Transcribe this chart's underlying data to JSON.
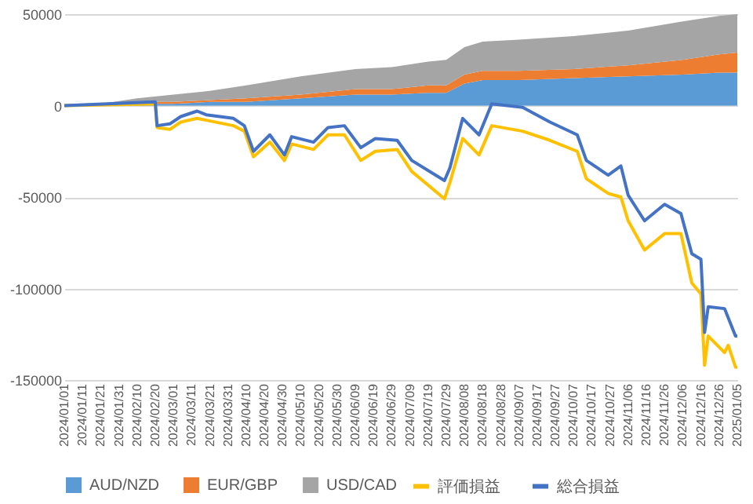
{
  "chart_data": {
    "type": "area",
    "stacked": true,
    "grid": "y",
    "legend": "bottom",
    "marker": "none",
    "line_style": "solid",
    "x": [
      "2024-01-01",
      "2024-01-21",
      "2024-02-10",
      "2024-03-01",
      "2024-03-21",
      "2024-04-10",
      "2024-05-10",
      "2024-06-09",
      "2024-06-29",
      "2024-07-19",
      "2024-07-29",
      "2024-08-08",
      "2024-08-18",
      "2024-09-07",
      "2024-10-07",
      "2024-11-06",
      "2024-12-06",
      "2024-12-26",
      "2025-01-05"
    ],
    "xlim": [
      "2024-01-01",
      "2025-01-05"
    ],
    "xticks": [
      {
        "value": "2024-01-01",
        "label": "2024/01/01"
      },
      {
        "value": "2024-01-11",
        "label": "2024/01/11"
      },
      {
        "value": "2024-01-21",
        "label": "2024/01/21"
      },
      {
        "value": "2024-01-31",
        "label": "2024/01/31"
      },
      {
        "value": "2024-02-10",
        "label": "2024/02/10"
      },
      {
        "value": "2024-02-20",
        "label": "2024/02/20"
      },
      {
        "value": "2024-03-01",
        "label": "2024/03/01"
      },
      {
        "value": "2024-03-11",
        "label": "2024/03/11"
      },
      {
        "value": "2024-03-21",
        "label": "2024/03/21"
      },
      {
        "value": "2024-03-31",
        "label": "2024/03/31"
      },
      {
        "value": "2024-04-10",
        "label": "2024/04/10"
      },
      {
        "value": "2024-04-20",
        "label": "2024/04/20"
      },
      {
        "value": "2024-04-30",
        "label": "2024/04/30"
      },
      {
        "value": "2024-05-10",
        "label": "2024/05/10"
      },
      {
        "value": "2024-05-20",
        "label": "2024/05/20"
      },
      {
        "value": "2024-05-30",
        "label": "2024/05/30"
      },
      {
        "value": "2024-06-09",
        "label": "2024/06/09"
      },
      {
        "value": "2024-06-19",
        "label": "2024/06/19"
      },
      {
        "value": "2024-06-29",
        "label": "2024/06/29"
      },
      {
        "value": "2024-07-09",
        "label": "2024/07/09"
      },
      {
        "value": "2024-07-19",
        "label": "2024/07/19"
      },
      {
        "value": "2024-07-29",
        "label": "2024/07/29"
      },
      {
        "value": "2024-08-08",
        "label": "2024/08/08"
      },
      {
        "value": "2024-08-18",
        "label": "2024/08/18"
      },
      {
        "value": "2024-08-28",
        "label": "2024/08/28"
      },
      {
        "value": "2024-09-07",
        "label": "2024/09/07"
      },
      {
        "value": "2024-09-17",
        "label": "2024/09/17"
      },
      {
        "value": "2024-09-27",
        "label": "2024/09/27"
      },
      {
        "value": "2024-10-07",
        "label": "2024/10/07"
      },
      {
        "value": "2024-10-17",
        "label": "2024/10/17"
      },
      {
        "value": "2024-10-27",
        "label": "2024/10/27"
      },
      {
        "value": "2024-11-06",
        "label": "2024/11/06"
      },
      {
        "value": "2024-11-16",
        "label": "2024/11/16"
      },
      {
        "value": "2024-11-26",
        "label": "2024/11/26"
      },
      {
        "value": "2024-12-06",
        "label": "2024/12/06"
      },
      {
        "value": "2024-12-16",
        "label": "2024/12/16"
      },
      {
        "value": "2024-12-26",
        "label": "2024/12/26"
      },
      {
        "value": "2025-01-05",
        "label": "2025/01/05"
      }
    ],
    "ylim": [
      -150000,
      50000
    ],
    "yticks": [
      -150000,
      -100000,
      -50000,
      0,
      50000
    ],
    "series": [
      {
        "name": "AUD/NZD",
        "color": "#5b9bd5",
        "values": [
          0,
          0,
          1000,
          1000,
          2000,
          2000,
          4000,
          6000,
          6000,
          7000,
          7000,
          12000,
          14000,
          14000,
          15000,
          16000,
          17000,
          18000,
          18000
        ]
      },
      {
        "name": "EUR/GBP",
        "color": "#ed7d31",
        "values": [
          0,
          0,
          1000,
          1000,
          1000,
          2000,
          2000,
          3000,
          3000,
          4000,
          4000,
          5000,
          5000,
          5000,
          5000,
          6000,
          8000,
          10000,
          11000
        ]
      },
      {
        "name": "USD/CAD",
        "color": "#a5a5a5",
        "values": [
          0,
          1000,
          2000,
          4000,
          5000,
          7000,
          10000,
          11000,
          12000,
          13000,
          14000,
          15000,
          16000,
          17000,
          18000,
          19000,
          21000,
          21000,
          21000
        ]
      },
      {
        "name": "評価損益",
        "type": "line",
        "color": "#ffc000",
        "x": [
          "2024-01-01",
          "2024-02-20",
          "2024-02-21",
          "2024-02-28",
          "2024-03-05",
          "2024-03-14",
          "2024-03-19",
          "2024-04-03",
          "2024-04-09",
          "2024-04-14",
          "2024-04-23",
          "2024-05-01",
          "2024-05-05",
          "2024-05-17",
          "2024-05-25",
          "2024-06-03",
          "2024-06-12",
          "2024-06-20",
          "2024-07-02",
          "2024-07-10",
          "2024-07-28",
          "2024-07-31",
          "2024-08-07",
          "2024-08-16",
          "2024-08-23",
          "2024-09-09",
          "2024-09-24",
          "2024-10-09",
          "2024-10-14",
          "2024-10-26",
          "2024-11-02",
          "2024-11-06",
          "2024-11-15",
          "2024-11-26",
          "2024-12-05",
          "2024-12-11",
          "2024-12-16",
          "2024-12-18",
          "2024-12-20",
          "2024-12-29",
          "2024-12-31",
          "2025-01-04",
          "2025-01-05"
        ],
        "values": [
          0,
          1000,
          -12000,
          -13000,
          -9000,
          -7000,
          -8000,
          -11000,
          -14000,
          -28000,
          -20000,
          -30000,
          -21000,
          -24000,
          -16000,
          -16000,
          -30000,
          -25000,
          -24000,
          -36000,
          -51000,
          -42000,
          -18000,
          -27000,
          -11000,
          -14000,
          -19000,
          -25000,
          -40000,
          -48000,
          -50000,
          -63000,
          -79000,
          -70000,
          -70000,
          -97000,
          -103000,
          -142000,
          -126000,
          -135000,
          -131000,
          -143000,
          -143000
        ]
      },
      {
        "name": "総合損益",
        "type": "line",
        "color": "#4472c4",
        "x": [
          "2024-01-01",
          "2024-02-20",
          "2024-02-21",
          "2024-02-28",
          "2024-03-05",
          "2024-03-14",
          "2024-03-19",
          "2024-04-03",
          "2024-04-09",
          "2024-04-14",
          "2024-04-23",
          "2024-05-01",
          "2024-05-05",
          "2024-05-17",
          "2024-05-25",
          "2024-06-03",
          "2024-06-12",
          "2024-06-20",
          "2024-07-02",
          "2024-07-10",
          "2024-07-28",
          "2024-07-31",
          "2024-08-07",
          "2024-08-16",
          "2024-08-23",
          "2024-09-09",
          "2024-09-24",
          "2024-10-09",
          "2024-10-14",
          "2024-10-26",
          "2024-11-02",
          "2024-11-06",
          "2024-11-15",
          "2024-11-26",
          "2024-12-05",
          "2024-12-11",
          "2024-12-16",
          "2024-12-18",
          "2024-12-20",
          "2024-12-29",
          "2024-12-31",
          "2025-01-04",
          "2025-01-05"
        ],
        "values": [
          0,
          2000,
          -11000,
          -10000,
          -6000,
          -3000,
          -5000,
          -7000,
          -11000,
          -25000,
          -16000,
          -27000,
          -17000,
          -20000,
          -12000,
          -11000,
          -23000,
          -18000,
          -19000,
          -30000,
          -41000,
          -34000,
          -7000,
          -16000,
          1000,
          -1000,
          -9000,
          -16000,
          -30000,
          -38000,
          -33000,
          -49000,
          -63000,
          -54000,
          -59000,
          -81000,
          -84000,
          -124000,
          -110000,
          -111000,
          -116000,
          -126000,
          -126000
        ]
      }
    ]
  }
}
